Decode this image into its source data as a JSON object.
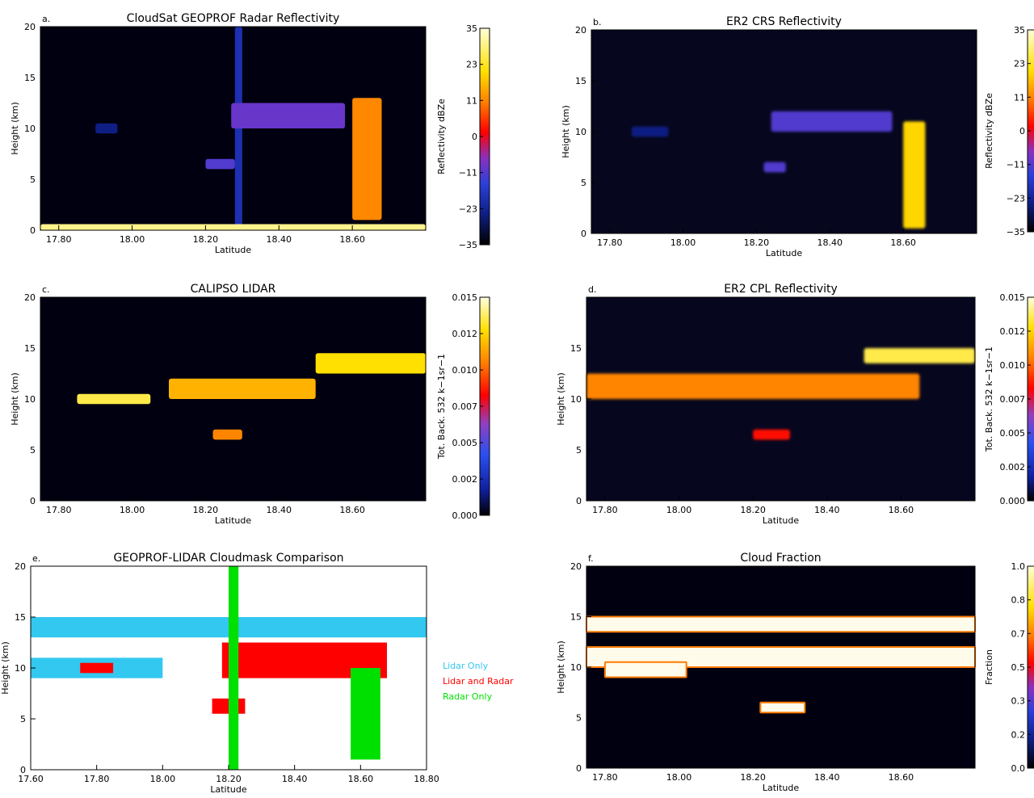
{
  "panels": [
    {
      "id": "a",
      "letter": "a.",
      "title": "CloudSat GEOPROF Radar Reflectivity",
      "ylabel": "Height (km)",
      "xlabel": "Latitude",
      "xticks": [
        "17.80",
        "18.00",
        "18.20",
        "18.40",
        "18.60"
      ],
      "yticks": [
        "0",
        "5",
        "10",
        "15",
        "20"
      ],
      "colorbar": {
        "label": "Reflectivity dBZe",
        "ticks": [
          "35",
          "23",
          "11",
          "0",
          "−11",
          "−23",
          "−35"
        ]
      }
    },
    {
      "id": "b",
      "letter": "b.",
      "title": "ER2 CRS Reflectivity",
      "ylabel": "Height (km)",
      "xlabel": "Latitude",
      "xticks": [
        "17.80",
        "18.00",
        "18.20",
        "18.40",
        "18.60"
      ],
      "yticks": [
        "0",
        "5",
        "10",
        "15",
        "20"
      ],
      "colorbar": {
        "label": "Reflectivity dBZe",
        "ticks": [
          "35",
          "23",
          "11",
          "0",
          "−11",
          "−23",
          "−35"
        ]
      }
    },
    {
      "id": "c",
      "letter": "c.",
      "title": "CALIPSO LIDAR",
      "ylabel": "Height (km)",
      "xlabel": "Latitude",
      "xticks": [
        "17.80",
        "18.00",
        "18.20",
        "18.40",
        "18.60"
      ],
      "yticks": [
        "0",
        "5",
        "10",
        "15",
        "20"
      ],
      "colorbar": {
        "label": "Tot. Back. 532 k−1sr−1",
        "ticks": [
          "0.015",
          "0.012",
          "0.010",
          "0.007",
          "0.005",
          "0.002",
          "0.000"
        ]
      }
    },
    {
      "id": "d",
      "letter": "d.",
      "title": "ER2 CPL Reflectivity",
      "ylabel": "Height (km)",
      "xlabel": "Latitude",
      "xticks": [
        "17.80",
        "18.00",
        "18.20",
        "18.40",
        "18.60"
      ],
      "yticks": [
        "0",
        "5",
        "10",
        "15"
      ],
      "colorbar": {
        "label": "Tot. Back. 532 k−1sr−1",
        "ticks": [
          "0.015",
          "0.012",
          "0.010",
          "0.007",
          "0.005",
          "0.002",
          "0.000"
        ]
      }
    },
    {
      "id": "e",
      "letter": "e.",
      "title": "GEOPROF-LIDAR Cloudmask Comparison",
      "ylabel": "Height (km)",
      "xlabel": "Latitude",
      "xticks": [
        "17.60",
        "17.80",
        "18.00",
        "18.20",
        "18.40",
        "18.60",
        "18.80"
      ],
      "yticks": [
        "0",
        "5",
        "10",
        "15",
        "20"
      ],
      "legend": [
        {
          "label": "Lidar Only",
          "color": "#33c8f0"
        },
        {
          "label": "Lidar and Radar",
          "color": "#ff0000"
        },
        {
          "label": "Radar Only",
          "color": "#00e000"
        }
      ]
    },
    {
      "id": "f",
      "letter": "f.",
      "title": "Cloud Fraction",
      "ylabel": "Height (km)",
      "xlabel": "Latitude",
      "xticks": [
        "17.80",
        "18.00",
        "18.20",
        "18.40",
        "18.60"
      ],
      "yticks": [
        "0",
        "5",
        "10",
        "15",
        "20"
      ],
      "colorbar": {
        "label": "Fraction",
        "ticks": [
          "1.0",
          "0.8",
          "0.7",
          "0.5",
          "0.3",
          "0.2",
          "0.0"
        ]
      }
    }
  ],
  "chart_data": [
    {
      "type": "heatmap",
      "panel": "a",
      "xlim": [
        17.75,
        18.8
      ],
      "ylim": [
        0,
        20
      ],
      "vlim": [
        -35,
        35
      ],
      "units": "dBZe",
      "features": [
        {
          "desc": "instrument artifact column",
          "lat": [
            18.28,
            18.3
          ],
          "height": [
            0.5,
            20
          ],
          "value": -20
        },
        {
          "desc": "isolated cloud",
          "lat": [
            17.9,
            17.96
          ],
          "height": [
            9.5,
            10.5
          ],
          "value": -25
        },
        {
          "desc": "anvil layer",
          "lat": [
            18.27,
            18.58
          ],
          "height": [
            10,
            12.5
          ],
          "value": -10
        },
        {
          "desc": "low cloud",
          "lat": [
            18.2,
            18.28
          ],
          "height": [
            6,
            7
          ],
          "value": -12
        },
        {
          "desc": "convective core",
          "lat": [
            18.6,
            18.68
          ],
          "height": [
            1,
            13
          ],
          "value": 12
        },
        {
          "desc": "surface clutter",
          "lat": [
            17.75,
            18.8
          ],
          "height": [
            0,
            0.6
          ],
          "value": 30
        }
      ]
    },
    {
      "type": "heatmap",
      "panel": "b",
      "xlim": [
        17.75,
        18.8
      ],
      "ylim": [
        0,
        20
      ],
      "vlim": [
        -35,
        35
      ],
      "units": "dBZe",
      "features": [
        {
          "desc": "isolated cloud",
          "lat": [
            17.86,
            17.96
          ],
          "height": [
            9.5,
            10.5
          ],
          "value": -25
        },
        {
          "desc": "anvil layer",
          "lat": [
            18.24,
            18.57
          ],
          "height": [
            10,
            12
          ],
          "value": -12
        },
        {
          "desc": "low cloud",
          "lat": [
            18.22,
            18.28
          ],
          "height": [
            6,
            7
          ],
          "value": -12
        },
        {
          "desc": "convective core",
          "lat": [
            18.6,
            18.66
          ],
          "height": [
            0.5,
            11
          ],
          "value": 20
        }
      ]
    },
    {
      "type": "heatmap",
      "panel": "c",
      "xlim": [
        17.75,
        18.8
      ],
      "ylim": [
        0,
        20
      ],
      "vlim": [
        0,
        0.015
      ],
      "features": [
        {
          "desc": "upper cirrus",
          "lat": [
            18.5,
            18.8
          ],
          "height": [
            12.5,
            14.5
          ],
          "value": 0.012
        },
        {
          "desc": "mid layer",
          "lat": [
            18.1,
            18.5
          ],
          "height": [
            10,
            12
          ],
          "value": 0.011
        },
        {
          "desc": "lower layer",
          "lat": [
            17.85,
            18.05
          ],
          "height": [
            9.5,
            10.5
          ],
          "value": 0.013
        },
        {
          "desc": "low cloud",
          "lat": [
            18.22,
            18.3
          ],
          "height": [
            6,
            7
          ],
          "value": 0.01
        }
      ]
    },
    {
      "type": "heatmap",
      "panel": "d",
      "xlim": [
        17.75,
        18.8
      ],
      "ylim": [
        0,
        20
      ],
      "vlim": [
        0,
        0.015
      ],
      "features": [
        {
          "desc": "upper cirrus",
          "lat": [
            18.5,
            18.8
          ],
          "height": [
            13.5,
            15
          ],
          "value": 0.013
        },
        {
          "desc": "mid layer",
          "lat": [
            17.75,
            18.65
          ],
          "height": [
            10,
            12.5
          ],
          "value": 0.01
        },
        {
          "desc": "low cloud",
          "lat": [
            18.2,
            18.3
          ],
          "height": [
            6,
            7
          ],
          "value": 0.008
        }
      ]
    },
    {
      "type": "heatmap",
      "panel": "e",
      "xlim": [
        17.6,
        18.8
      ],
      "ylim": [
        0,
        20
      ],
      "categories": [
        "Lidar Only",
        "Lidar and Radar",
        "Radar Only"
      ],
      "features": [
        {
          "category": "Lidar Only",
          "lat": [
            17.6,
            18.8
          ],
          "height": [
            13,
            15
          ]
        },
        {
          "category": "Lidar Only",
          "lat": [
            17.6,
            18.0
          ],
          "height": [
            9,
            11
          ]
        },
        {
          "category": "Lidar and Radar",
          "lat": [
            17.75,
            17.85
          ],
          "height": [
            9.5,
            10.5
          ]
        },
        {
          "category": "Lidar and Radar",
          "lat": [
            18.18,
            18.68
          ],
          "height": [
            9,
            12.5
          ]
        },
        {
          "category": "Lidar and Radar",
          "lat": [
            18.15,
            18.25
          ],
          "height": [
            5.5,
            7
          ]
        },
        {
          "category": "Radar Only",
          "lat": [
            18.2,
            18.23
          ],
          "height": [
            0,
            20
          ]
        },
        {
          "category": "Radar Only",
          "lat": [
            18.57,
            18.66
          ],
          "height": [
            1,
            10
          ]
        }
      ]
    },
    {
      "type": "heatmap",
      "panel": "f",
      "xlim": [
        17.75,
        18.8
      ],
      "ylim": [
        0,
        20
      ],
      "vlim": [
        0,
        1
      ],
      "features": [
        {
          "desc": "upper layer",
          "lat": [
            17.75,
            18.8
          ],
          "height": [
            13.5,
            15
          ],
          "value": 1.0
        },
        {
          "desc": "mid layer",
          "lat": [
            17.75,
            18.8
          ],
          "height": [
            10,
            12
          ],
          "value": 1.0
        },
        {
          "desc": "lower layer",
          "lat": [
            17.8,
            18.02
          ],
          "height": [
            9,
            10.5
          ],
          "value": 1.0
        },
        {
          "desc": "low cloud",
          "lat": [
            18.22,
            18.34
          ],
          "height": [
            5.5,
            6.5
          ],
          "value": 1.0
        }
      ]
    }
  ]
}
